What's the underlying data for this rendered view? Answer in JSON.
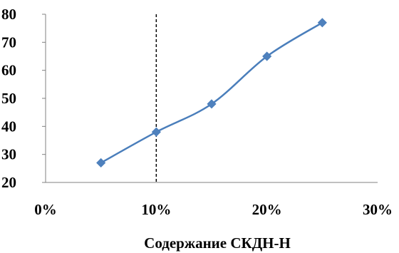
{
  "chart_data": {
    "type": "line",
    "title": "",
    "ylabel": "",
    "xlabel": "Содержание СКДН-Н",
    "x_ticks": [
      "0%",
      "10%",
      "20%",
      "30%"
    ],
    "y_ticks": [
      "20",
      "30",
      "40",
      "50",
      "60",
      "70",
      "80"
    ],
    "xlim": [
      0,
      30
    ],
    "ylim": [
      20,
      80
    ],
    "reference_line_x": 10,
    "series": [
      {
        "x": [
          5,
          10,
          15,
          20,
          25
        ],
        "values": [
          27,
          38,
          48,
          65,
          77
        ]
      }
    ],
    "grid": false,
    "legend": "none",
    "colors": {
      "series": "#4A7EBB",
      "marker": "#4F81BD",
      "axis": "#808080",
      "reference_line": "#000000"
    }
  }
}
